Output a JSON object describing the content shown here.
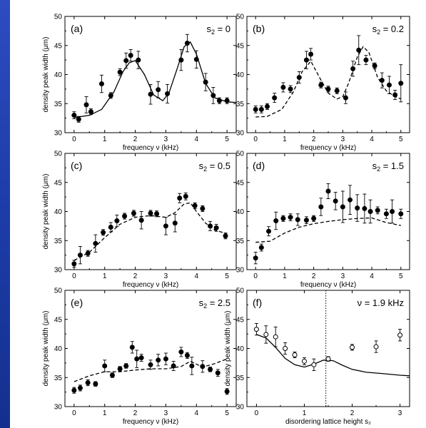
{
  "chart_data": [
    {
      "type": "scatter",
      "panel_label": "(a)",
      "annotation": "s₂ = 0",
      "xlabel": "frequency ν (kHz)",
      "ylabel": "density peak width (μm)",
      "xlim": [
        -0.3,
        5.3
      ],
      "ylim": [
        30,
        50
      ],
      "xticks": [
        0,
        1,
        2,
        3,
        4,
        5
      ],
      "yticks": [
        30,
        35,
        40,
        45,
        50
      ],
      "points": [
        {
          "x": 0.0,
          "y": 33.0,
          "err": 0.6
        },
        {
          "x": 0.15,
          "y": 32.3,
          "err": 0.5
        },
        {
          "x": 0.4,
          "y": 34.8,
          "err": 1.4
        },
        {
          "x": 0.55,
          "y": 33.6,
          "err": 0.5
        },
        {
          "x": 0.9,
          "y": 38.4,
          "err": 1.5
        },
        {
          "x": 1.2,
          "y": 36.4,
          "err": 0.5
        },
        {
          "x": 1.5,
          "y": 40.4,
          "err": 0.6
        },
        {
          "x": 1.7,
          "y": 42.4,
          "err": 1.3
        },
        {
          "x": 1.85,
          "y": 43.3,
          "err": 1.0
        },
        {
          "x": 2.1,
          "y": 42.5,
          "err": 1.5
        },
        {
          "x": 2.5,
          "y": 36.6,
          "err": 1.7
        },
        {
          "x": 2.75,
          "y": 37.4,
          "err": 1.4
        },
        {
          "x": 3.05,
          "y": 36.7,
          "err": 1.6
        },
        {
          "x": 3.5,
          "y": 42.5,
          "err": 1.8
        },
        {
          "x": 3.7,
          "y": 45.4,
          "err": 1.5
        },
        {
          "x": 4.0,
          "y": 42.6,
          "err": 1.5
        },
        {
          "x": 4.3,
          "y": 38.7,
          "err": 1.5
        },
        {
          "x": 4.55,
          "y": 36.4,
          "err": 1.4
        },
        {
          "x": 4.75,
          "y": 35.5,
          "err": 0.5
        },
        {
          "x": 5.0,
          "y": 35.5,
          "err": 0.5
        }
      ],
      "curve": {
        "style": "solid",
        "x": [
          0,
          0.5,
          0.9,
          1.3,
          1.6,
          1.8,
          2.0,
          2.3,
          2.6,
          2.9,
          3.1,
          3.4,
          3.6,
          3.8,
          4.0,
          4.3,
          4.6,
          5.0,
          5.3
        ],
        "y": [
          32.6,
          33.0,
          34.0,
          37.0,
          40.5,
          42.0,
          42.4,
          40.0,
          36.5,
          35.5,
          36.8,
          41.5,
          44.8,
          45.6,
          43.5,
          38.5,
          36.0,
          35.3,
          35.2
        ]
      }
    },
    {
      "type": "scatter",
      "panel_label": "(b)",
      "annotation": "s₂ = 0.2",
      "xlabel": "frequency ν (kHz)",
      "ylabel": "",
      "xlim": [
        -0.3,
        5.3
      ],
      "ylim": [
        30,
        50
      ],
      "xticks": [
        0,
        1,
        2,
        3,
        4,
        5
      ],
      "yticks": [
        30,
        35,
        40,
        45,
        50
      ],
      "points": [
        {
          "x": 0.0,
          "y": 34.0,
          "err": 0.6
        },
        {
          "x": 0.2,
          "y": 34.0,
          "err": 0.6
        },
        {
          "x": 0.4,
          "y": 34.5,
          "err": 0.5
        },
        {
          "x": 0.65,
          "y": 36.0,
          "err": 0.8
        },
        {
          "x": 0.95,
          "y": 37.8,
          "err": 0.8
        },
        {
          "x": 1.2,
          "y": 37.5,
          "err": 0.6
        },
        {
          "x": 1.5,
          "y": 39.5,
          "err": 1.0
        },
        {
          "x": 1.75,
          "y": 42.5,
          "err": 1.5
        },
        {
          "x": 1.9,
          "y": 43.5,
          "err": 1.0
        },
        {
          "x": 2.25,
          "y": 38.2,
          "err": 0.5
        },
        {
          "x": 2.5,
          "y": 37.5,
          "err": 0.5
        },
        {
          "x": 2.8,
          "y": 37.2,
          "err": 0.5
        },
        {
          "x": 3.1,
          "y": 36.0,
          "err": 1.0
        },
        {
          "x": 3.35,
          "y": 41.0,
          "err": 1.3
        },
        {
          "x": 3.55,
          "y": 44.2,
          "err": 2.5
        },
        {
          "x": 3.8,
          "y": 42.5,
          "err": 0.8
        },
        {
          "x": 4.1,
          "y": 41.5,
          "err": 0.5
        },
        {
          "x": 4.35,
          "y": 39.0,
          "err": 1.3
        },
        {
          "x": 4.6,
          "y": 38.2,
          "err": 1.5
        },
        {
          "x": 4.8,
          "y": 36.5,
          "err": 0.8
        },
        {
          "x": 5.0,
          "y": 38.5,
          "err": 3.2
        }
      ],
      "curve": {
        "style": "dashed",
        "x": [
          0,
          0.4,
          0.9,
          1.3,
          1.6,
          1.9,
          2.2,
          2.5,
          2.8,
          3.0,
          3.2,
          3.5,
          3.7,
          3.9,
          4.2,
          4.5,
          4.8,
          5.0
        ],
        "y": [
          32.7,
          32.8,
          34.0,
          37.0,
          40.5,
          42.3,
          39.5,
          36.8,
          35.8,
          36.2,
          38.5,
          43.0,
          44.8,
          43.8,
          39.5,
          37.2,
          36.2,
          35.8
        ]
      }
    },
    {
      "type": "scatter",
      "panel_label": "(c)",
      "annotation": "s₂ = 0.5",
      "xlabel": "frequency ν (kHz)",
      "ylabel": "density peak width (μm)",
      "xlim": [
        -0.3,
        5.3
      ],
      "ylim": [
        30,
        50
      ],
      "xticks": [
        0,
        1,
        2,
        3,
        4,
        5
      ],
      "yticks": [
        30,
        35,
        40,
        45,
        50
      ],
      "points": [
        {
          "x": 0.0,
          "y": 31.0,
          "err": 0.6
        },
        {
          "x": 0.2,
          "y": 32.5,
          "err": 1.5
        },
        {
          "x": 0.45,
          "y": 32.8,
          "err": 0.5
        },
        {
          "x": 0.7,
          "y": 34.5,
          "err": 1.5
        },
        {
          "x": 0.95,
          "y": 36.4,
          "err": 0.5
        },
        {
          "x": 1.2,
          "y": 37.3,
          "err": 0.8
        },
        {
          "x": 1.4,
          "y": 38.4,
          "err": 1.0
        },
        {
          "x": 1.65,
          "y": 39.2,
          "err": 0.5
        },
        {
          "x": 1.95,
          "y": 39.7,
          "err": 0.5
        },
        {
          "x": 2.2,
          "y": 38.5,
          "err": 1.5
        },
        {
          "x": 2.5,
          "y": 39.7,
          "err": 0.5
        },
        {
          "x": 2.7,
          "y": 39.6,
          "err": 0.5
        },
        {
          "x": 3.0,
          "y": 37.5,
          "err": 1.5
        },
        {
          "x": 3.3,
          "y": 38.0,
          "err": 1.5
        },
        {
          "x": 3.45,
          "y": 42.3,
          "err": 0.8
        },
        {
          "x": 3.65,
          "y": 42.6,
          "err": 0.6
        },
        {
          "x": 3.95,
          "y": 41.0,
          "err": 0.5
        },
        {
          "x": 4.2,
          "y": 40.5,
          "err": 0.5
        },
        {
          "x": 4.45,
          "y": 37.5,
          "err": 0.8
        },
        {
          "x": 4.65,
          "y": 37.2,
          "err": 0.6
        },
        {
          "x": 4.95,
          "y": 35.8,
          "err": 0.5
        }
      ],
      "curve": {
        "style": "dashed",
        "x": [
          0,
          0.5,
          1.0,
          1.5,
          2.0,
          2.5,
          3.0,
          3.3,
          3.6,
          3.8,
          4.0,
          4.3,
          4.6,
          5.0
        ],
        "y": [
          31.6,
          33.0,
          35.5,
          37.8,
          39.0,
          39.3,
          39.0,
          39.8,
          41.3,
          41.5,
          40.0,
          38.0,
          36.8,
          36.2
        ]
      }
    },
    {
      "type": "scatter",
      "panel_label": "(d)",
      "annotation": "s₂ = 1.5",
      "xlabel": "frequency ν (kHz)",
      "ylabel": "",
      "xlim": [
        -0.3,
        5.3
      ],
      "ylim": [
        30,
        50
      ],
      "xticks": [
        0,
        1,
        2,
        3,
        4,
        5
      ],
      "yticks": [
        30,
        35,
        40,
        45,
        50
      ],
      "points": [
        {
          "x": 0.0,
          "y": 32.0,
          "err": 1.0
        },
        {
          "x": 0.2,
          "y": 33.8,
          "err": 0.6
        },
        {
          "x": 0.45,
          "y": 36.6,
          "err": 0.8
        },
        {
          "x": 0.7,
          "y": 38.4,
          "err": 1.5
        },
        {
          "x": 0.95,
          "y": 38.8,
          "err": 0.5
        },
        {
          "x": 1.2,
          "y": 39.0,
          "err": 0.6
        },
        {
          "x": 1.45,
          "y": 38.6,
          "err": 1.0
        },
        {
          "x": 1.75,
          "y": 38.5,
          "err": 0.6
        },
        {
          "x": 2.0,
          "y": 38.8,
          "err": 0.5
        },
        {
          "x": 2.25,
          "y": 40.8,
          "err": 1.5
        },
        {
          "x": 2.5,
          "y": 43.5,
          "err": 1.3
        },
        {
          "x": 2.75,
          "y": 41.8,
          "err": 1.5
        },
        {
          "x": 3.0,
          "y": 40.8,
          "err": 2.7
        },
        {
          "x": 3.25,
          "y": 42.0,
          "err": 2.5
        },
        {
          "x": 3.5,
          "y": 40.6,
          "err": 2.3
        },
        {
          "x": 3.75,
          "y": 40.5,
          "err": 2.5
        },
        {
          "x": 3.95,
          "y": 40.0,
          "err": 2.0
        },
        {
          "x": 4.2,
          "y": 40.2,
          "err": 0.6
        },
        {
          "x": 4.5,
          "y": 39.6,
          "err": 0.8
        },
        {
          "x": 4.7,
          "y": 40.0,
          "err": 2.0
        },
        {
          "x": 5.0,
          "y": 39.6,
          "err": 0.8
        }
      ],
      "curve": {
        "style": "dashed",
        "x": [
          0,
          0.5,
          1.0,
          1.5,
          2.0,
          2.5,
          3.0,
          3.5,
          4.0,
          4.5,
          5.0
        ],
        "y": [
          34.7,
          34.9,
          36.3,
          37.3,
          37.9,
          38.3,
          38.6,
          38.8,
          38.9,
          38.1,
          37.6
        ]
      }
    },
    {
      "type": "scatter",
      "panel_label": "(e)",
      "annotation": "s₂ = 2.5",
      "xlabel": "frequency ν (kHz)",
      "ylabel": "density peak width (μm)",
      "xlim": [
        -0.3,
        5.3
      ],
      "ylim": [
        30,
        50
      ],
      "xticks": [
        0,
        1,
        2,
        3,
        4,
        5
      ],
      "yticks": [
        30,
        35,
        40,
        45,
        50
      ],
      "points": [
        {
          "x": 0.0,
          "y": 32.8,
          "err": 0.5
        },
        {
          "x": 0.2,
          "y": 33.2,
          "err": 0.5
        },
        {
          "x": 0.45,
          "y": 34.1,
          "err": 0.5
        },
        {
          "x": 0.7,
          "y": 33.9,
          "err": 0.4
        },
        {
          "x": 1.0,
          "y": 37.0,
          "err": 1.0
        },
        {
          "x": 1.25,
          "y": 35.4,
          "err": 0.4
        },
        {
          "x": 1.5,
          "y": 36.5,
          "err": 0.4
        },
        {
          "x": 1.7,
          "y": 37.0,
          "err": 0.4
        },
        {
          "x": 1.9,
          "y": 40.2,
          "err": 1.0
        },
        {
          "x": 2.05,
          "y": 38.2,
          "err": 1.5
        },
        {
          "x": 2.2,
          "y": 38.4,
          "err": 0.6
        },
        {
          "x": 2.5,
          "y": 37.2,
          "err": 0.8
        },
        {
          "x": 2.75,
          "y": 38.0,
          "err": 1.0
        },
        {
          "x": 3.0,
          "y": 38.2,
          "err": 1.0
        },
        {
          "x": 3.25,
          "y": 37.0,
          "err": 0.8
        },
        {
          "x": 3.5,
          "y": 39.4,
          "err": 0.8
        },
        {
          "x": 3.7,
          "y": 38.8,
          "err": 0.5
        },
        {
          "x": 3.85,
          "y": 37.0,
          "err": 1.5
        },
        {
          "x": 4.2,
          "y": 36.9,
          "err": 1.0
        },
        {
          "x": 4.45,
          "y": 36.4,
          "err": 0.4
        },
        {
          "x": 4.7,
          "y": 35.8,
          "err": 0.6
        },
        {
          "x": 5.0,
          "y": 32.6,
          "err": 0.5
        }
      ],
      "curve": {
        "style": "dashed",
        "x": [
          0,
          0.5,
          1.0,
          1.5,
          2.0,
          2.5,
          3.0,
          3.5,
          3.8,
          4.2,
          4.6,
          5.0
        ],
        "y": [
          34.3,
          35.3,
          36.0,
          36.0,
          36.3,
          36.5,
          36.5,
          36.9,
          37.8,
          36.8,
          37.4,
          38.2
        ]
      }
    },
    {
      "type": "scatter",
      "panel_label": "(f)",
      "annotation": "ν = 1.9 kHz",
      "xlabel": "disordering lattice height s₂",
      "ylabel": "density peak width (μm)",
      "xlim": [
        -0.2,
        3.2
      ],
      "ylim": [
        30,
        50
      ],
      "xticks": [
        0,
        1,
        2,
        3
      ],
      "yticks": [
        30,
        35,
        40,
        45,
        50
      ],
      "vline": 1.45,
      "points": [
        {
          "x": 0.0,
          "y": 43.3,
          "err": 1.0
        },
        {
          "x": 0.2,
          "y": 42.4,
          "err": 1.5
        },
        {
          "x": 0.4,
          "y": 42.0,
          "err": 1.7
        },
        {
          "x": 0.6,
          "y": 40.0,
          "err": 1.0
        },
        {
          "x": 0.8,
          "y": 38.9,
          "err": 0.5
        },
        {
          "x": 1.0,
          "y": 37.8,
          "err": 0.6
        },
        {
          "x": 1.2,
          "y": 37.2,
          "err": 1.0
        },
        {
          "x": 1.5,
          "y": 38.2,
          "err": 0.4
        },
        {
          "x": 2.0,
          "y": 40.2,
          "err": 0.5
        },
        {
          "x": 2.5,
          "y": 40.3,
          "err": 1.0
        },
        {
          "x": 3.0,
          "y": 42.3,
          "err": 1.0
        }
      ],
      "curve": {
        "style": "solid",
        "x": [
          0,
          0.2,
          0.4,
          0.6,
          0.8,
          1.0,
          1.2,
          1.4,
          1.6,
          1.8,
          2.0,
          2.3,
          2.6,
          3.0,
          3.2
        ],
        "y": [
          42.4,
          41.8,
          40.2,
          38.3,
          37.2,
          36.8,
          37.3,
          38.0,
          37.9,
          37.1,
          36.4,
          35.9,
          35.7,
          35.4,
          35.3
        ]
      }
    }
  ]
}
